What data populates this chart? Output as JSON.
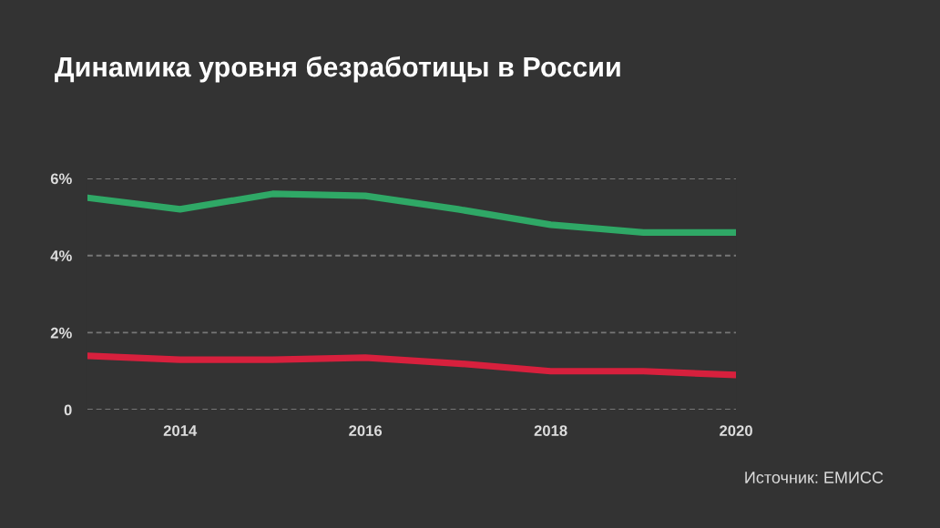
{
  "chart_data": {
    "type": "line",
    "title": "Динамика уровня безработицы в России",
    "x": [
      2013,
      2014,
      2015,
      2016,
      2017,
      2018,
      2019,
      2020
    ],
    "series": [
      {
        "color": "#2fa866",
        "values": [
          5.5,
          5.2,
          5.6,
          5.55,
          5.2,
          4.8,
          4.6,
          4.6
        ]
      },
      {
        "color": "#d7203d",
        "values": [
          1.4,
          1.3,
          1.3,
          1.35,
          1.2,
          1.0,
          1.0,
          0.9
        ]
      }
    ],
    "xlim": [
      2013,
      2020
    ],
    "xticks": [
      2014,
      2016,
      2018,
      2020
    ],
    "ylim": [
      0,
      6
    ],
    "yticks": [
      0,
      {
        "value": 2,
        "label": "2%"
      },
      {
        "value": 4,
        "label": "4%"
      },
      {
        "value": 6,
        "label": "6%"
      }
    ],
    "grid": "y",
    "marker": "none",
    "line_style": "solid",
    "annotations": [
      "Источник: ЕМИСС"
    ]
  }
}
